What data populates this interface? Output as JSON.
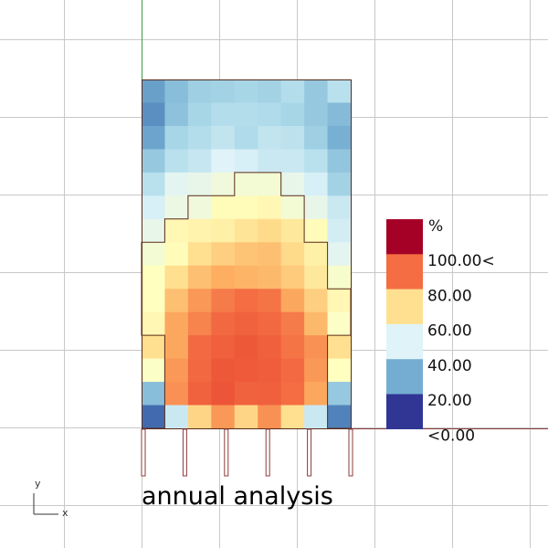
{
  "viewport": {
    "caption": "annual analysis",
    "axis_labels": {
      "x": "x",
      "y": "y"
    }
  },
  "legend": {
    "unit": "%",
    "labels": [
      "100.00<",
      "80.00",
      "60.00",
      "40.00",
      "20.00",
      "<0.00"
    ],
    "swatch_colors": [
      "#a50026",
      "#f46d43",
      "#fee090",
      "#e0f3f8",
      "#74add1",
      "#313695"
    ]
  },
  "colors": {
    "grid_line": "#c8c8c8",
    "y_axis": "#3c9b3c",
    "x_axis": "#8b3a3a",
    "outline": "#5a2a1a",
    "fins": "#8b3a3a"
  },
  "heatmap": {
    "rows": 15,
    "cols": 9,
    "values": [
      [
        22,
        30,
        35,
        36,
        37,
        36,
        40,
        33,
        41
      ],
      [
        18,
        31,
        37,
        40,
        40,
        39,
        37,
        33,
        29
      ],
      [
        23,
        37,
        40,
        43,
        39,
        43,
        42,
        35,
        26
      ],
      [
        33,
        41,
        44,
        50,
        48,
        45,
        45,
        41,
        32
      ],
      [
        41,
        51,
        52,
        54,
        55,
        55,
        52,
        48,
        36
      ],
      [
        48,
        53,
        54,
        59,
        59,
        60,
        55,
        52,
        45
      ],
      [
        52,
        60,
        61,
        62,
        65,
        67,
        64,
        59,
        47
      ],
      [
        55,
        59,
        66,
        69,
        71,
        72,
        67,
        62,
        51
      ],
      [
        58,
        66,
        72,
        75,
        74,
        73,
        70,
        64,
        56
      ],
      [
        58,
        72,
        78,
        82,
        84,
        83,
        76,
        69,
        60
      ],
      [
        60,
        76,
        81,
        86,
        88,
        86,
        82,
        73,
        57
      ],
      [
        66,
        76,
        85,
        89,
        92,
        89,
        83,
        79,
        66
      ],
      [
        57,
        78,
        86,
        92,
        91,
        90,
        85,
        78,
        58
      ],
      [
        30,
        79,
        88,
        93,
        88,
        89,
        84,
        76,
        33
      ],
      [
        10,
        45,
        68,
        78,
        68,
        79,
        66,
        45,
        15
      ]
    ]
  },
  "heated_zone_outline": [
    [
      0,
      15
    ],
    [
      1,
      15
    ],
    [
      1,
      11
    ],
    [
      0,
      11
    ],
    [
      0,
      7
    ],
    [
      1,
      7
    ],
    [
      1,
      6
    ],
    [
      2,
      6
    ],
    [
      2,
      5
    ],
    [
      4,
      5
    ],
    [
      4,
      4
    ],
    [
      6,
      4
    ],
    [
      6,
      5
    ],
    [
      7,
      5
    ],
    [
      7,
      7
    ],
    [
      8,
      7
    ],
    [
      8,
      9
    ],
    [
      9,
      9
    ],
    [
      9,
      11
    ],
    [
      8,
      11
    ],
    [
      8,
      15
    ],
    [
      9,
      15
    ]
  ],
  "fins": [
    0,
    1,
    2,
    3,
    4,
    5
  ]
}
